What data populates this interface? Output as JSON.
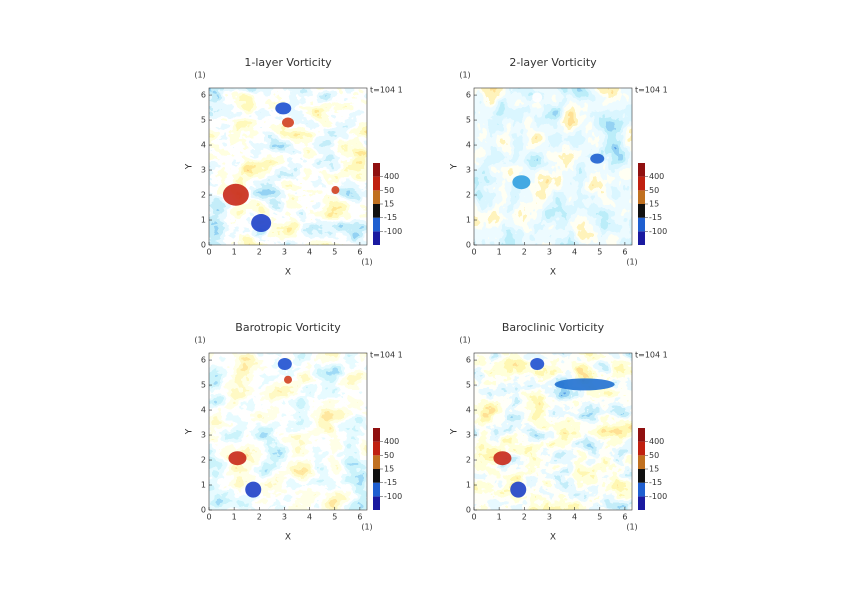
{
  "chart_data": [
    {
      "type": "heatmap",
      "title": "1-layer Vorticity",
      "xlabel": "X",
      "ylabel": "Y",
      "x_unit": "(1)",
      "y_unit": "(1)",
      "annotation": "t=104 1",
      "xlim": [
        0,
        6.283
      ],
      "ylim": [
        0,
        6.283
      ],
      "xticks": [
        0,
        1,
        2,
        3,
        4,
        5,
        6
      ],
      "yticks": [
        0,
        1,
        2,
        3,
        4,
        5,
        6
      ],
      "colorbar": {
        "levels": [
          -400,
          -100,
          -15,
          15,
          50,
          400,
          500
        ],
        "colors": [
          "#1a1aa0",
          "#1f5fd0",
          "#101010",
          "#c07020",
          "#c02010",
          "#901010"
        ],
        "ticks": [
          400,
          50,
          15,
          -15,
          -100
        ]
      }
    },
    {
      "type": "heatmap",
      "title": "2-layer Vorticity",
      "xlabel": "X",
      "ylabel": "Y",
      "x_unit": "(1)",
      "y_unit": "(1)",
      "annotation": "t=104 1",
      "xlim": [
        0,
        6.283
      ],
      "ylim": [
        0,
        6.283
      ],
      "xticks": [
        0,
        1,
        2,
        3,
        4,
        5,
        6
      ],
      "yticks": [
        0,
        1,
        2,
        3,
        4,
        5,
        6
      ],
      "colorbar": {
        "levels": [
          -400,
          -100,
          -15,
          15,
          50,
          400,
          500
        ],
        "colors": [
          "#1a1aa0",
          "#1f5fd0",
          "#101010",
          "#c07020",
          "#c02010",
          "#901010"
        ],
        "ticks": [
          400,
          50,
          15,
          -15,
          -100
        ]
      }
    },
    {
      "type": "heatmap",
      "title": "Barotropic Vorticity",
      "xlabel": "X",
      "ylabel": "Y",
      "x_unit": "(1)",
      "y_unit": "(1)",
      "annotation": "t=104 1",
      "xlim": [
        0,
        6.283
      ],
      "ylim": [
        0,
        6.283
      ],
      "xticks": [
        0,
        1,
        2,
        3,
        4,
        5,
        6
      ],
      "yticks": [
        0,
        1,
        2,
        3,
        4,
        5,
        6
      ],
      "colorbar": {
        "levels": [
          -400,
          -100,
          -15,
          15,
          50,
          400,
          500
        ],
        "colors": [
          "#1a1aa0",
          "#1f5fd0",
          "#101010",
          "#c07020",
          "#c02010",
          "#901010"
        ],
        "ticks": [
          400,
          50,
          15,
          -15,
          -100
        ]
      }
    },
    {
      "type": "heatmap",
      "title": "Baroclinic Vorticity",
      "xlabel": "X",
      "ylabel": "Y",
      "x_unit": "(1)",
      "y_unit": "(1)",
      "annotation": "t=104 1",
      "xlim": [
        0,
        6.283
      ],
      "ylim": [
        0,
        6.283
      ],
      "xticks": [
        0,
        1,
        2,
        3,
        4,
        5,
        6
      ],
      "yticks": [
        0,
        1,
        2,
        3,
        4,
        5,
        6
      ],
      "colorbar": {
        "levels": [
          -400,
          -100,
          -15,
          15,
          50,
          400,
          500
        ],
        "colors": [
          "#1a1aa0",
          "#1f5fd0",
          "#101010",
          "#c07020",
          "#c02010",
          "#901010"
        ],
        "ticks": [
          400,
          50,
          15,
          -15,
          -100
        ]
      }
    }
  ]
}
